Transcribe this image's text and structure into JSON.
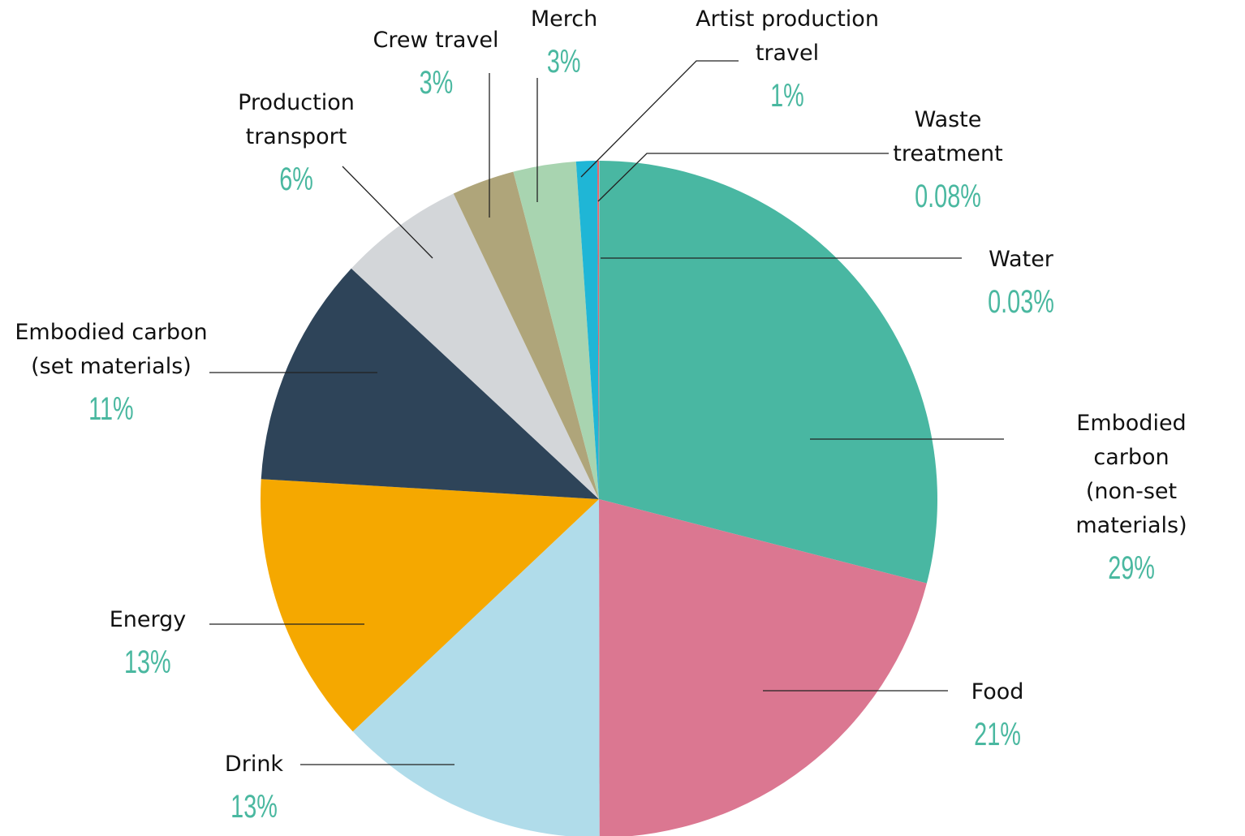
{
  "chart_data": {
    "type": "pie",
    "categories": [
      "Water",
      "Embodied carbon\n(non-set materials)",
      "Food",
      "Drink",
      "Energy",
      "Embodied carbon\n(set materials)",
      "Production\ntransport",
      "Crew travel",
      "Merch",
      "Artist production\ntravel",
      "Waste\ntreatment"
    ],
    "values": [
      0.03,
      29,
      21,
      13,
      13,
      11,
      6,
      3,
      3,
      1,
      0.08
    ],
    "value_labels": [
      "0.03%",
      "29%",
      "21%",
      "13%",
      "13%",
      "11%",
      "6%",
      "3%",
      "3%",
      "1%",
      "0.08%"
    ],
    "colors": [
      "#7fc6e0",
      "#49b7a2",
      "#db7791",
      "#b0dcea",
      "#f5a800",
      "#2e4459",
      "#d3d6d9",
      "#afa57a",
      "#a8d4b0",
      "#1fb6d6",
      "#e8666e"
    ],
    "label_color": "#4ab8a0"
  }
}
